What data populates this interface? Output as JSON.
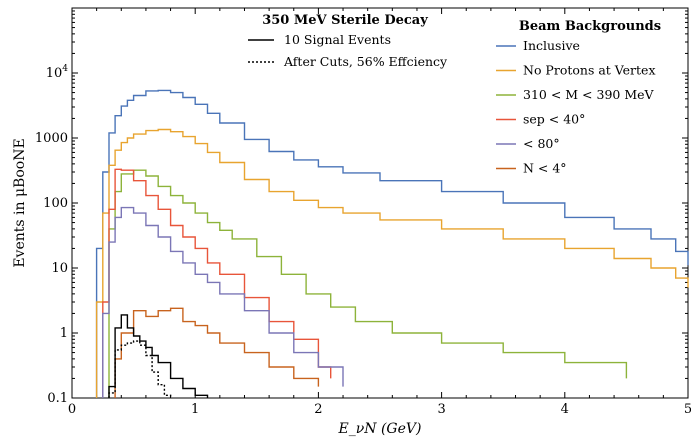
{
  "chart_data": {
    "type": "line",
    "title": "",
    "xlabel": "E_νN (GeV)",
    "ylabel": "Events in μBooNE",
    "xlim": [
      0,
      5
    ],
    "ylim": [
      0.1,
      100000
    ],
    "yscale": "log",
    "x_ticks": [
      "0",
      "1",
      "2",
      "3",
      "4",
      "5"
    ],
    "y_ticks": [
      "0.1",
      "1",
      "10",
      "100",
      "1000",
      "10^4"
    ],
    "grid": false,
    "legend_signal": {
      "title": "350 MeV Sterile Decay",
      "position": "top-center"
    },
    "legend_background": {
      "title": "Beam Backgrounds",
      "position": "top-right"
    },
    "series": [
      {
        "name": "Inclusive μ⁺",
        "legend_label": "Inclusive",
        "color": "#4a74b8",
        "style": "solid",
        "x": [
          0.2,
          0.25,
          0.3,
          0.35,
          0.4,
          0.45,
          0.5,
          0.6,
          0.7,
          0.8,
          0.9,
          1.0,
          1.1,
          1.2,
          1.4,
          1.6,
          1.8,
          2.0,
          2.2,
          2.5,
          3.0,
          3.5,
          4.0,
          4.4,
          4.7,
          4.9,
          5.0
        ],
        "y": [
          20,
          300,
          1200,
          2200,
          3100,
          3800,
          4500,
          5300,
          5400,
          5000,
          4200,
          3300,
          2400,
          1700,
          950,
          620,
          460,
          360,
          290,
          220,
          150,
          100,
          60,
          40,
          28,
          18,
          11
        ]
      },
      {
        "name": "No Protons at Vertex",
        "legend_label": "No Protons at Vertex",
        "color": "#e8a42f",
        "style": "solid",
        "x": [
          0.2,
          0.25,
          0.3,
          0.35,
          0.4,
          0.45,
          0.5,
          0.6,
          0.7,
          0.8,
          0.9,
          1.0,
          1.1,
          1.2,
          1.4,
          1.6,
          1.8,
          2.0,
          2.2,
          2.5,
          3.0,
          3.5,
          4.0,
          4.4,
          4.7,
          4.9,
          5.0
        ],
        "y": [
          3,
          70,
          380,
          650,
          850,
          1000,
          1150,
          1300,
          1350,
          1250,
          1050,
          820,
          600,
          420,
          230,
          150,
          110,
          85,
          70,
          55,
          40,
          28,
          20,
          14,
          10,
          7,
          5
        ]
      },
      {
        "name": "310 < Mμμ < 390 MeV",
        "legend_label": "310 < M",
        "legend_suffix": " < 390 MeV",
        "color": "#8db33a",
        "style": "solid",
        "x": [
          0.3,
          0.35,
          0.4,
          0.5,
          0.6,
          0.7,
          0.8,
          0.9,
          1.0,
          1.1,
          1.2,
          1.3,
          1.5,
          1.7,
          1.9,
          2.1,
          2.3,
          2.6,
          3.0,
          3.5,
          4.0,
          4.5
        ],
        "y": [
          40,
          150,
          280,
          320,
          260,
          180,
          130,
          100,
          70,
          50,
          38,
          28,
          15,
          8,
          4,
          2.5,
          1.5,
          1.0,
          0.7,
          0.5,
          0.35,
          0.2
        ]
      },
      {
        "name": "θsep < 40°",
        "legend_label": "sep < 40°",
        "color": "#e8553a",
        "style": "solid",
        "x": [
          0.25,
          0.3,
          0.35,
          0.4,
          0.5,
          0.6,
          0.7,
          0.8,
          0.9,
          1.0,
          1.1,
          1.2,
          1.4,
          1.6,
          1.8,
          2.0,
          2.1
        ],
        "y": [
          3,
          80,
          330,
          320,
          220,
          130,
          80,
          45,
          30,
          20,
          12,
          8,
          3.5,
          1.5,
          0.8,
          0.3,
          0.2
        ]
      },
      {
        "name": "θμμ < 80°",
        "legend_label": " < 80°",
        "color": "#7b76b6",
        "style": "solid",
        "x": [
          0.25,
          0.3,
          0.35,
          0.4,
          0.5,
          0.6,
          0.7,
          0.8,
          0.9,
          1.0,
          1.1,
          1.2,
          1.4,
          1.6,
          1.8,
          2.0,
          2.2
        ],
        "y": [
          2,
          25,
          60,
          85,
          70,
          45,
          30,
          18,
          12,
          8,
          6,
          4,
          2.2,
          1.0,
          0.5,
          0.3,
          0.15
        ]
      },
      {
        "name": "θN < 4°",
        "legend_label": "N < 4°",
        "color": "#c8631e",
        "style": "solid",
        "x": [
          0.35,
          0.4,
          0.5,
          0.6,
          0.7,
          0.8,
          0.9,
          1.0,
          1.1,
          1.2,
          1.4,
          1.6,
          1.8,
          2.0
        ],
        "y": [
          0.4,
          1.0,
          2.2,
          1.8,
          2.2,
          2.4,
          1.5,
          1.3,
          1.0,
          0.7,
          0.5,
          0.3,
          0.2,
          0.15
        ]
      },
      {
        "name": "10 Signal Events",
        "legend_label": "10 Signal Events",
        "color": "#000000",
        "style": "solid",
        "x": [
          0.3,
          0.35,
          0.4,
          0.45,
          0.5,
          0.55,
          0.6,
          0.65,
          0.7,
          0.8,
          0.9,
          1.0,
          1.1
        ],
        "y": [
          0.15,
          1.2,
          1.9,
          1.2,
          0.9,
          0.75,
          0.6,
          0.45,
          0.35,
          0.2,
          0.14,
          0.11,
          0.1
        ]
      },
      {
        "name": "After Cuts, 56% Effciency",
        "legend_label": "After Cuts, 56% Effciency",
        "color": "#000000",
        "style": "dotted",
        "x": [
          0.3,
          0.35,
          0.4,
          0.45,
          0.5,
          0.55,
          0.6,
          0.65,
          0.7,
          0.75,
          0.8
        ],
        "y": [
          0.12,
          0.55,
          0.65,
          0.7,
          0.75,
          0.65,
          0.45,
          0.25,
          0.16,
          0.11,
          0.1
        ]
      }
    ]
  }
}
